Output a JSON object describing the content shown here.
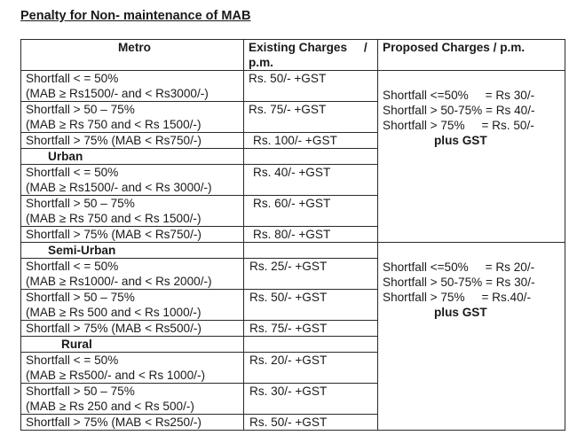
{
  "title": "Penalty for Non- maintenance of MAB",
  "headers": {
    "metro": "Metro",
    "existing": "Existing Charges     /",
    "existing_line2": "p.m.",
    "proposed": "Proposed Charges / p.m."
  },
  "metro": {
    "rows": [
      {
        "l1": "Shortfall < = 50%",
        "l2": "(MAB ≥ Rs1500/- and < Rs3000/-)",
        "charge": "Rs. 50/- +GST"
      },
      {
        "l1": "Shortfall > 50 – 75%",
        "l2": "(MAB ≥ Rs 750 and < Rs 1500/-)",
        "charge": "Rs. 75/- +GST"
      },
      {
        "l1": "Shortfall > 75% (MAB < Rs750/-)",
        "charge": "Rs. 100/- +GST"
      }
    ]
  },
  "urban": {
    "label": "Urban",
    "rows": [
      {
        "l1": "Shortfall < = 50%",
        "l2": "(MAB ≥ Rs1500/- and < Rs 3000/-)",
        "charge": "Rs. 40/- +GST"
      },
      {
        "l1": "Shortfall > 50 – 75%",
        "l2": "(MAB ≥ Rs 750 and < Rs 1500/-)",
        "charge": "Rs. 60/- +GST"
      },
      {
        "l1": "Shortfall > 75% (MAB < Rs750/-)",
        "charge": "Rs. 80/- +GST"
      }
    ]
  },
  "semi_urban": {
    "label": "Semi-Urban",
    "rows": [
      {
        "l1": "Shortfall < = 50%",
        "l2": "(MAB ≥ Rs1000/- and < Rs 2000/-)",
        "charge": "Rs. 25/- +GST"
      },
      {
        "l1": "Shortfall > 50 – 75%",
        "l2": "(MAB ≥ Rs 500 and < Rs 1000/-)",
        "charge": "Rs. 50/- +GST"
      },
      {
        "l1": "Shortfall > 75% (MAB < Rs500/-)",
        "charge": "Rs. 75/- +GST"
      }
    ]
  },
  "rural": {
    "label": "Rural",
    "rows": [
      {
        "l1": "Shortfall < = 50%",
        "l2": "(MAB ≥ Rs500/- and < Rs 1000/-)",
        "charge": "Rs. 20/- +GST"
      },
      {
        "l1": "Shortfall > 50 – 75%",
        "l2": "(MAB ≥ Rs 250 and < Rs 500/-)",
        "charge": "Rs. 30/- +GST"
      },
      {
        "l1": "Shortfall > 75% (MAB < Rs250/-)",
        "charge": "Rs. 50/- +GST"
      }
    ]
  },
  "proposed_metro_urban": {
    "lines": [
      "Shortfall <=50%     = Rs 30/-",
      "Shortfall > 50-75% = Rs 40/-",
      "Shortfall > 75%     = Rs. 50/-"
    ],
    "footer": "plus GST"
  },
  "proposed_semi_rural": {
    "lines": [
      "Shortfall <=50%     = Rs 20/-",
      "Shortfall > 50-75% = Rs 30/-",
      "Shortfall > 75%     = Rs.40/-"
    ],
    "footer": "plus GST"
  }
}
